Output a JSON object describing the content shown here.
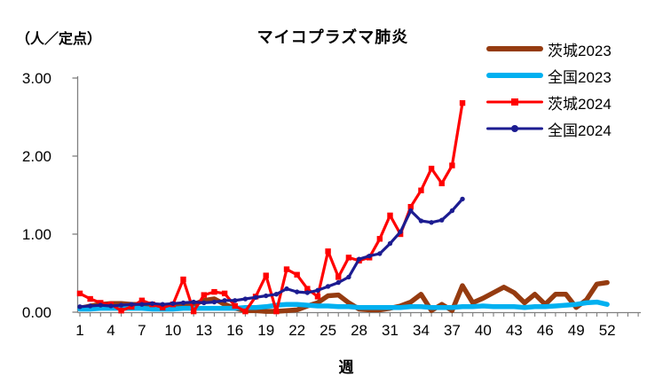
{
  "title": "マイコプラズマ肺炎",
  "y_unit_label": "（人／定点）",
  "x_axis_label": "週",
  "chart_data": {
    "type": "line",
    "title": "マイコプラズマ肺炎",
    "xlabel": "週",
    "ylabel": "（人／定点）",
    "xlim": [
      1,
      52
    ],
    "ylim": [
      0,
      3
    ],
    "grid": false,
    "legend_position": "top-right",
    "axis_color": "#7f7f7f",
    "x_tick_labels": [
      1,
      4,
      7,
      10,
      13,
      16,
      19,
      22,
      25,
      28,
      31,
      34,
      37,
      40,
      43,
      46,
      49,
      52
    ],
    "y_ticks": [
      0,
      1,
      2,
      3
    ],
    "y_tick_labels": [
      "0.00",
      "1.00",
      "2.00",
      "3.00"
    ],
    "series": [
      {
        "name": "茨城2023",
        "color": "#953B10",
        "line": "thick",
        "marker": "none",
        "start_week": 1,
        "values": [
          0.05,
          0.08,
          0.1,
          0.11,
          0.11,
          0.1,
          0.1,
          0.07,
          0.05,
          0.08,
          0.08,
          0.1,
          0.15,
          0.17,
          0.1,
          0.05,
          0.02,
          0.02,
          0.01,
          0.01,
          0.02,
          0.03,
          0.08,
          0.12,
          0.21,
          0.22,
          0.12,
          0.04,
          0.03,
          0.03,
          0.05,
          0.08,
          0.13,
          0.23,
          0.02,
          0.1,
          0.02,
          0.34,
          0.12,
          0.18,
          0.25,
          0.32,
          0.25,
          0.12,
          0.23,
          0.1,
          0.23,
          0.23,
          0.06,
          0.16,
          0.36,
          0.38
        ]
      },
      {
        "name": "全国2023",
        "color": "#00B0F0",
        "line": "thick",
        "marker": "none",
        "start_week": 1,
        "values": [
          0.04,
          0.04,
          0.05,
          0.05,
          0.05,
          0.05,
          0.05,
          0.04,
          0.04,
          0.04,
          0.05,
          0.05,
          0.05,
          0.05,
          0.05,
          0.05,
          0.06,
          0.06,
          0.07,
          0.09,
          0.1,
          0.1,
          0.09,
          0.08,
          0.08,
          0.07,
          0.07,
          0.06,
          0.06,
          0.06,
          0.06,
          0.06,
          0.07,
          0.07,
          0.06,
          0.06,
          0.06,
          0.07,
          0.07,
          0.08,
          0.07,
          0.07,
          0.07,
          0.06,
          0.07,
          0.07,
          0.08,
          0.09,
          0.1,
          0.12,
          0.13,
          0.1
        ]
      },
      {
        "name": "茨城2024",
        "color": "#FF0000",
        "line": "thin",
        "marker": "square",
        "start_week": 1,
        "values": [
          0.24,
          0.17,
          0.12,
          0.1,
          0.02,
          0.07,
          0.15,
          0.1,
          0.06,
          0.1,
          0.42,
          0.01,
          0.22,
          0.26,
          0.24,
          0.08,
          0.01,
          0.2,
          0.47,
          0.01,
          0.55,
          0.48,
          0.3,
          0.2,
          0.78,
          0.45,
          0.7,
          0.66,
          0.7,
          0.94,
          1.24,
          1.0,
          1.35,
          1.56,
          1.84,
          1.65,
          1.88,
          2.68
        ]
      },
      {
        "name": "全国2024",
        "color": "#1C1C91",
        "line": "thin",
        "marker": "circle",
        "start_week": 1,
        "values": [
          0.07,
          0.08,
          0.09,
          0.08,
          0.09,
          0.1,
          0.1,
          0.11,
          0.1,
          0.11,
          0.12,
          0.13,
          0.12,
          0.13,
          0.15,
          0.15,
          0.17,
          0.19,
          0.21,
          0.23,
          0.3,
          0.26,
          0.25,
          0.28,
          0.33,
          0.38,
          0.45,
          0.68,
          0.72,
          0.75,
          0.88,
          1.03,
          1.3,
          1.17,
          1.15,
          1.18,
          1.3,
          1.45
        ]
      }
    ]
  }
}
